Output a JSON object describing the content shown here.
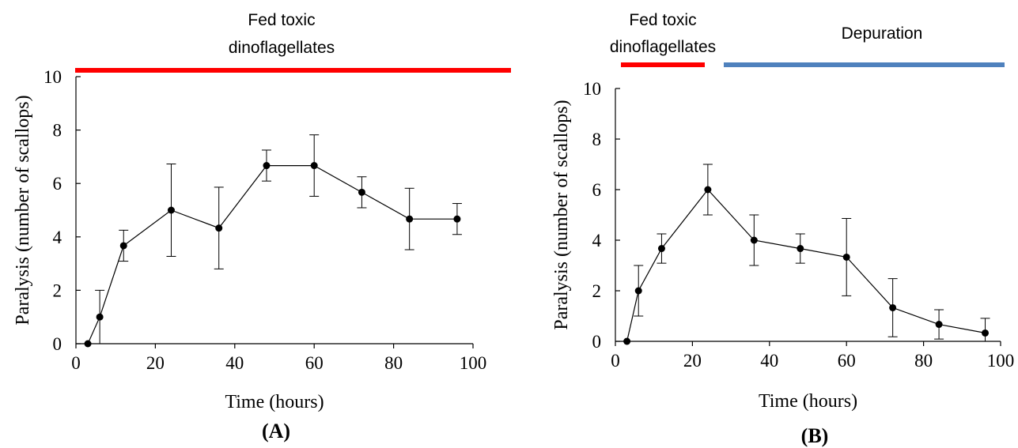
{
  "panels": [
    {
      "label": "(A)",
      "bars": [
        {
          "label_lines": [
            "Fed toxic",
            "dinoflagellates"
          ],
          "color": "#ff0000"
        }
      ]
    },
    {
      "label": "(B)",
      "bars": [
        {
          "label_lines": [
            "Fed toxic",
            "dinoflagellates"
          ],
          "color": "#ff0000"
        },
        {
          "label_lines": [
            "Depuration"
          ],
          "color": "#4f81bd"
        }
      ]
    }
  ],
  "chart_data": [
    {
      "type": "line",
      "title": "",
      "xlabel": "Time (hours)",
      "ylabel": "Paralysis (number of scallops)",
      "xlim": [
        0,
        100
      ],
      "ylim": [
        0,
        10
      ],
      "xticks": [
        0,
        20,
        40,
        60,
        80,
        100
      ],
      "yticks": [
        0,
        2,
        4,
        6,
        8,
        10
      ],
      "grid": false,
      "series": [
        {
          "x": [
            3,
            6,
            12,
            24,
            36,
            48,
            60,
            72,
            84,
            96
          ],
          "y": [
            0,
            1,
            3.67,
            5,
            4.33,
            6.67,
            6.67,
            5.67,
            4.67,
            4.67
          ],
          "error": [
            0,
            1,
            0.58,
            1.73,
            1.53,
            0.58,
            1.15,
            0.58,
            1.15,
            0.58
          ]
        }
      ]
    },
    {
      "type": "line",
      "title": "",
      "xlabel": "Time (hours)",
      "ylabel": "Paralysis (number of scallops)",
      "xlim": [
        0,
        100
      ],
      "ylim": [
        0,
        10
      ],
      "xticks": [
        0,
        20,
        40,
        60,
        80,
        100
      ],
      "yticks": [
        0,
        2,
        4,
        6,
        8,
        10
      ],
      "grid": false,
      "series": [
        {
          "x": [
            3,
            6,
            12,
            24,
            36,
            48,
            60,
            72,
            84,
            96
          ],
          "y": [
            0,
            2,
            3.67,
            6,
            4,
            3.67,
            3.33,
            1.33,
            0.67,
            0.33
          ],
          "error": [
            0,
            1,
            0.58,
            1,
            1,
            0.58,
            1.53,
            1.15,
            0.58,
            0.58
          ]
        }
      ]
    }
  ]
}
